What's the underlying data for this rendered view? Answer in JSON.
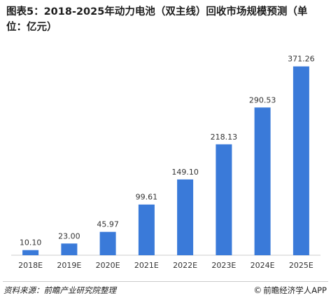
{
  "title": "图表5：2018-2025年动力电池（双主线）回收市场规模预测（单位：亿元）",
  "chart_data": {
    "type": "bar",
    "categories": [
      "2018E",
      "2019E",
      "2020E",
      "2021E",
      "2022E",
      "2023E",
      "2024E",
      "2025E"
    ],
    "values": [
      10.1,
      23.0,
      45.97,
      99.61,
      149.1,
      218.13,
      290.53,
      371.26
    ],
    "value_labels": [
      "10.10",
      "23.00",
      "45.97",
      "99.61",
      "149.10",
      "218.13",
      "290.53",
      "371.26"
    ],
    "ylim": [
      0,
      375
    ],
    "grid": false,
    "legend": "none",
    "bar_color": "#3a7ad9"
  },
  "footer": {
    "source": "资料来源：前瞻产业研究院整理",
    "copyright_symbol": "©",
    "credit": "前瞻经济学人APP"
  },
  "colors": {
    "bar": "#3a7ad9",
    "text": "#333333",
    "axis": "#cccccc"
  }
}
